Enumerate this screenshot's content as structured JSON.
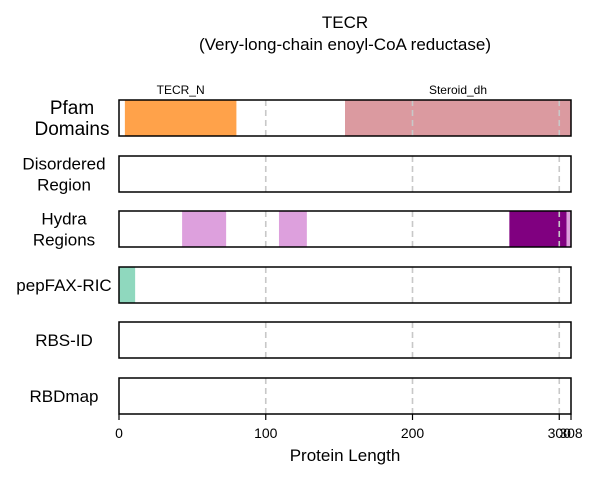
{
  "chart_data": {
    "type": "bar",
    "title": "TECR",
    "subtitle": "(Very-long-chain enoyl-CoA reductase)",
    "xlabel": "Protein Length",
    "xlim": [
      0,
      308
    ],
    "xticks": [
      0,
      100,
      200,
      300,
      308
    ],
    "protein_length": 308,
    "gridlines": [
      100,
      200,
      300
    ],
    "tracks": [
      {
        "id": "pfam",
        "label_lines": [
          "Pfam",
          "Domains"
        ],
        "segments": [
          {
            "start": 4,
            "end": 80,
            "color": "#FFA24A",
            "label": "TECR_N"
          },
          {
            "start": 154,
            "end": 308,
            "color": "#DB9AA0",
            "label": "Steroid_dh"
          }
        ]
      },
      {
        "id": "disordered",
        "label_lines": [
          "Disordered",
          "Region"
        ],
        "segments": []
      },
      {
        "id": "hydra",
        "label_lines": [
          "Hydra",
          "Regions"
        ],
        "segments": [
          {
            "start": 43,
            "end": 73,
            "color": "#DDA0DD"
          },
          {
            "start": 109,
            "end": 128,
            "color": "#DDA0DD"
          },
          {
            "start": 266,
            "end": 305,
            "color": "#800080"
          },
          {
            "start": 305,
            "end": 308,
            "color": "#DDA0DD"
          }
        ]
      },
      {
        "id": "pepfax",
        "label_lines": [
          "pepFAX-RIC"
        ],
        "segments": [
          {
            "start": 0,
            "end": 11,
            "color": "#8FD8BE"
          }
        ]
      },
      {
        "id": "rbsid",
        "label_lines": [
          "RBS-ID"
        ],
        "segments": []
      },
      {
        "id": "rbdmap",
        "label_lines": [
          "RBDmap"
        ],
        "segments": []
      }
    ]
  }
}
